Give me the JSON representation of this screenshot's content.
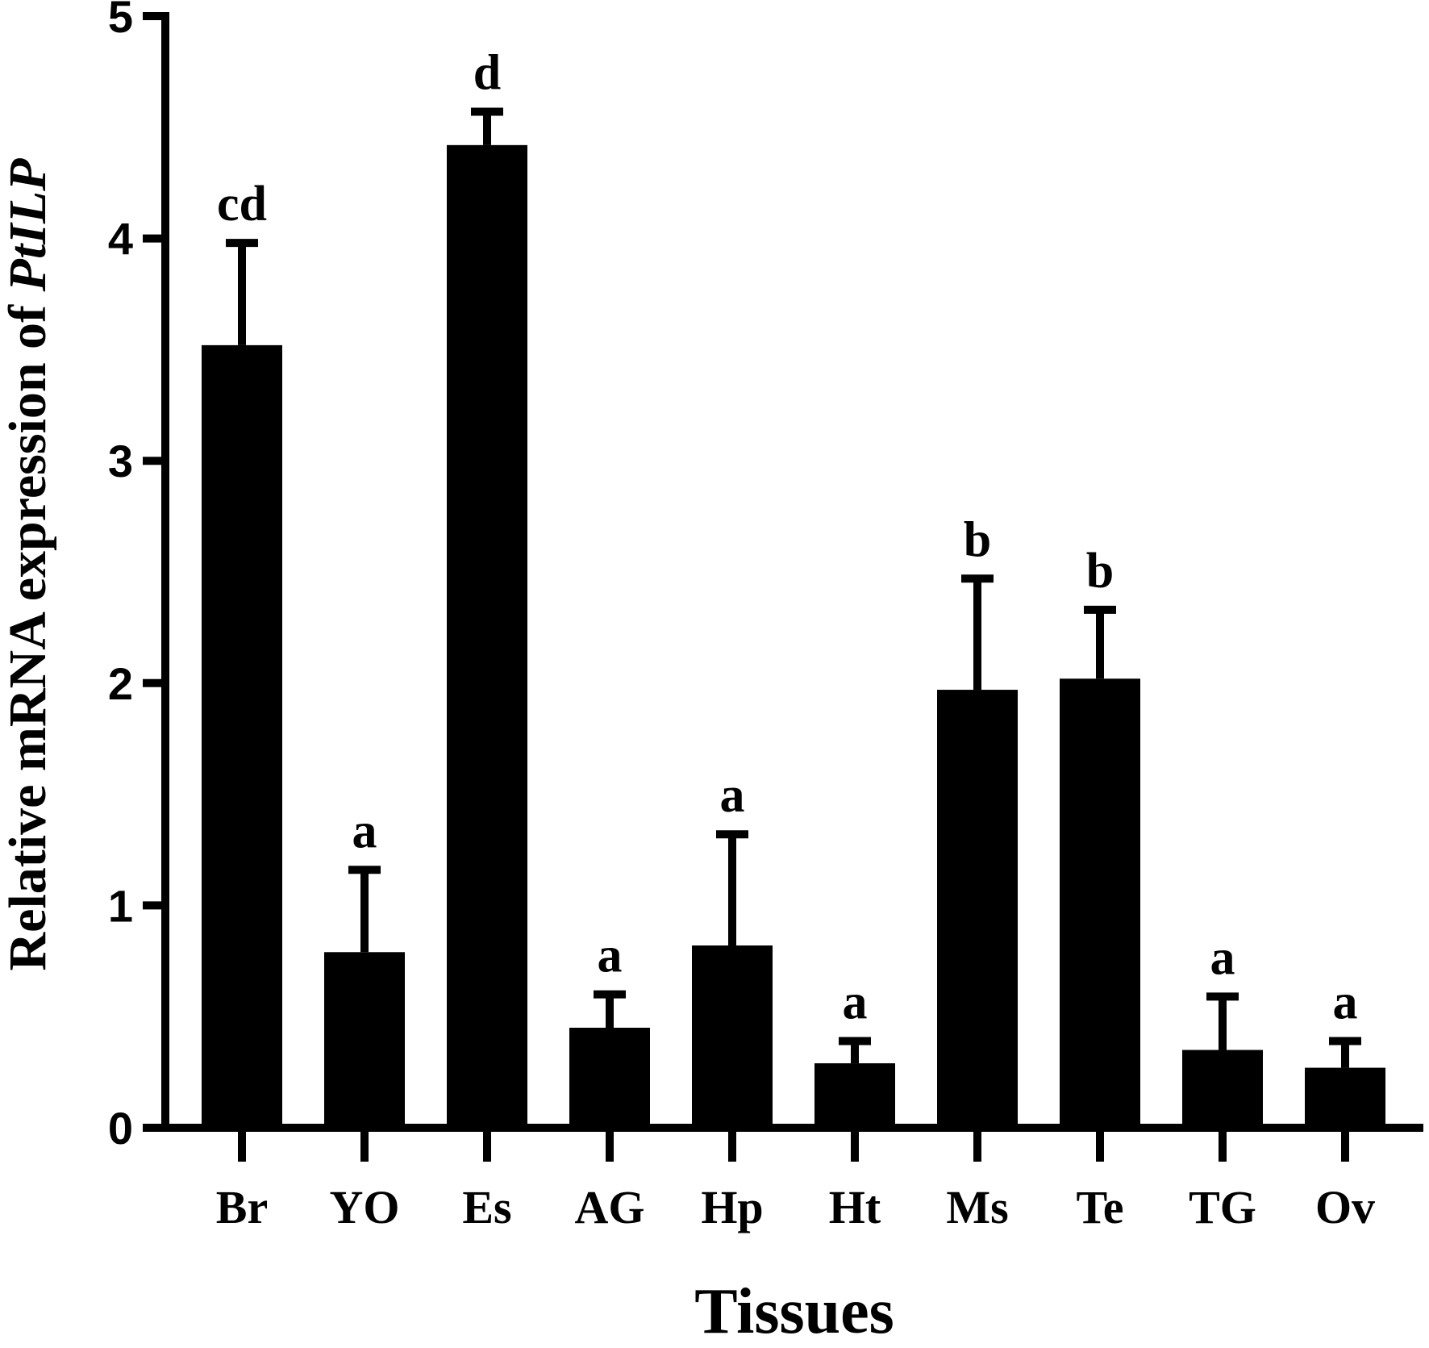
{
  "chart_data": {
    "type": "bar",
    "categories": [
      "Br",
      "YO",
      "Es",
      "AG",
      "Hp",
      "Ht",
      "Ms",
      "Te",
      "TG",
      "Ov"
    ],
    "values": [
      3.52,
      0.79,
      4.42,
      0.45,
      0.82,
      0.29,
      1.97,
      2.02,
      0.35,
      0.27
    ],
    "error": [
      0.46,
      0.37,
      0.15,
      0.15,
      0.5,
      0.1,
      0.5,
      0.31,
      0.24,
      0.12
    ],
    "significance": [
      "cd",
      "a",
      "d",
      "a",
      "a",
      "a",
      "b",
      "b",
      "a",
      "a"
    ],
    "title": "",
    "xlabel": "Tissues",
    "ylabel_prefix": "Relative mRNA expression of ",
    "ylabel_gene": "PtILP",
    "ylim": [
      0,
      5
    ],
    "yticks": [
      "0",
      "1",
      "2",
      "3",
      "4",
      "5"
    ],
    "grid": false,
    "legend": "none",
    "bar_color": "#000000"
  }
}
